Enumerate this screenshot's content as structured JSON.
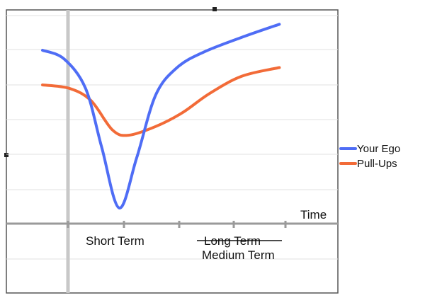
{
  "chart_data": {
    "type": "line",
    "title": "",
    "xlabel": "Time",
    "ylabel": "",
    "grid": true,
    "legend": "right",
    "x_ticks": [
      {
        "label": "Short Term",
        "struck": false
      },
      {
        "label": "Long Term",
        "struck": true,
        "replacement": "Medium Term"
      }
    ],
    "series": [
      {
        "name": "Your Ego",
        "color": "#4f6df5",
        "points": [
          [
            0.0,
            5.0
          ],
          [
            0.08,
            4.75
          ],
          [
            0.16,
            3.9
          ],
          [
            0.22,
            2.2
          ],
          [
            0.285,
            0.45
          ],
          [
            0.35,
            1.9
          ],
          [
            0.42,
            3.7
          ],
          [
            0.5,
            4.5
          ],
          [
            0.6,
            4.95
          ],
          [
            0.75,
            5.4
          ],
          [
            0.88,
            5.75
          ]
        ]
      },
      {
        "name": "Pull-Ups",
        "color": "#f26b38",
        "points": [
          [
            0.0,
            4.0
          ],
          [
            0.1,
            3.9
          ],
          [
            0.18,
            3.55
          ],
          [
            0.26,
            2.7
          ],
          [
            0.32,
            2.55
          ],
          [
            0.42,
            2.8
          ],
          [
            0.52,
            3.2
          ],
          [
            0.62,
            3.75
          ],
          [
            0.74,
            4.25
          ],
          [
            0.88,
            4.5
          ]
        ]
      }
    ]
  }
}
